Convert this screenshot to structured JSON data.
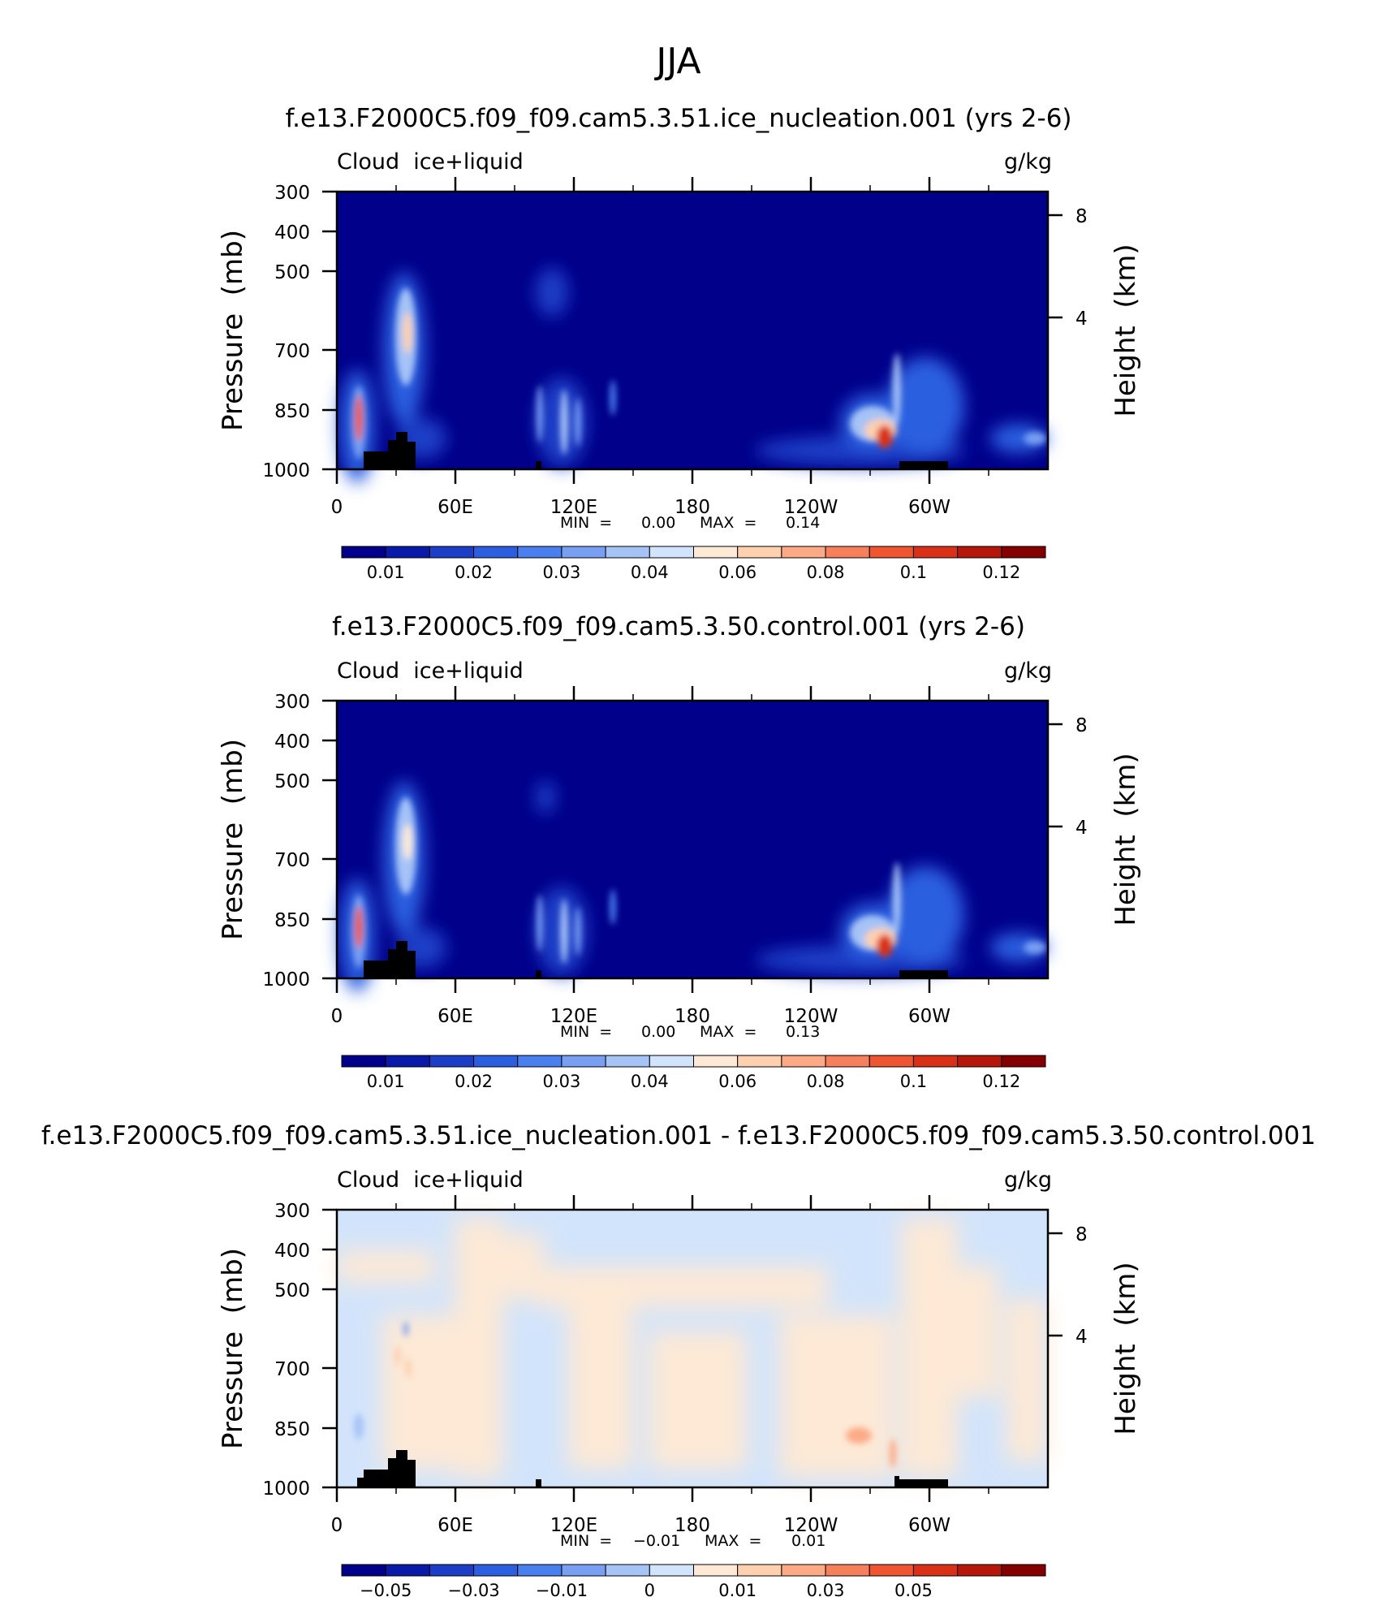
{
  "figure": {
    "title": "JJA"
  },
  "colorbars": {
    "abs": {
      "colors": [
        "#00008a",
        "#0a1aa8",
        "#1c3ec6",
        "#2c5fe0",
        "#4a7ff0",
        "#789ff2",
        "#a6c3f6",
        "#d2e4fb",
        "#fde9d6",
        "#fdd0b0",
        "#fcaa85",
        "#f7805c",
        "#f05532",
        "#d93117",
        "#b5170b",
        "#840000"
      ],
      "labels": [
        "0.01",
        "0.02",
        "0.03",
        "0.04",
        "0.06",
        "0.08",
        "0.1",
        "0.12"
      ]
    },
    "diff": {
      "colors": [
        "#00008a",
        "#0a1aa8",
        "#1c3ec6",
        "#2c5fe0",
        "#4a7ff0",
        "#789ff2",
        "#a6c3f6",
        "#d2e4fb",
        "#fde9d6",
        "#fdd0b0",
        "#fcaa85",
        "#f7805c",
        "#f05532",
        "#d93117",
        "#b5170b",
        "#840000"
      ],
      "labels": [
        "−0.05",
        "−0.03",
        "−0.01",
        "0",
        "0.01",
        "0.03",
        "0.05"
      ]
    }
  },
  "chart_data": [
    {
      "type": "heatmap",
      "title": "f.e13.F2000C5.f09_f09.cam5.3.51.ice_nucleation.001 (yrs 2-6)",
      "left_string": "Cloud  ice+liquid",
      "right_string": "g/kg",
      "ylabel": "Pressure  (mb)",
      "y2label": "Height  (km)",
      "xticks": [
        "0",
        "60E",
        "120E",
        "180",
        "120W",
        "60W"
      ],
      "yticks": [
        "300",
        "400",
        "500",
        "700",
        "850",
        "1000"
      ],
      "y2ticks": [
        "8",
        "4"
      ],
      "min_label": "MIN  =",
      "min_value": "0.00",
      "max_label": "MAX  =",
      "max_value": "0.14",
      "colorbar": "abs",
      "background": "#00008a",
      "features": [
        {
          "lon": 12,
          "p": 860,
          "value": 0.12
        },
        {
          "lon": 34,
          "p": 680,
          "value": 0.08
        },
        {
          "lon": 100,
          "p": 860,
          "value": 0.03
        },
        {
          "lon": 110,
          "p": 860,
          "value": 0.03
        },
        {
          "lon": 255,
          "p": 880,
          "value": 0.1
        },
        {
          "lon": 280,
          "p": 850,
          "value": 0.03
        },
        {
          "lon": 345,
          "p": 900,
          "value": 0.03
        }
      ]
    },
    {
      "type": "heatmap",
      "title": "f.e13.F2000C5.f09_f09.cam5.3.50.control.001 (yrs 2-6)",
      "left_string": "Cloud  ice+liquid",
      "right_string": "g/kg",
      "ylabel": "Pressure  (mb)",
      "y2label": "Height  (km)",
      "xticks": [
        "0",
        "60E",
        "120E",
        "180",
        "120W",
        "60W"
      ],
      "yticks": [
        "300",
        "400",
        "500",
        "700",
        "850",
        "1000"
      ],
      "y2ticks": [
        "8",
        "4"
      ],
      "min_label": "MIN  =",
      "min_value": "0.00",
      "max_label": "MAX  =",
      "max_value": "0.13",
      "colorbar": "abs",
      "background": "#00008a",
      "features": [
        {
          "lon": 12,
          "p": 860,
          "value": 0.11
        },
        {
          "lon": 34,
          "p": 680,
          "value": 0.07
        },
        {
          "lon": 100,
          "p": 860,
          "value": 0.03
        },
        {
          "lon": 110,
          "p": 860,
          "value": 0.03
        },
        {
          "lon": 255,
          "p": 880,
          "value": 0.1
        },
        {
          "lon": 280,
          "p": 850,
          "value": 0.03
        },
        {
          "lon": 345,
          "p": 900,
          "value": 0.03
        }
      ]
    },
    {
      "type": "heatmap",
      "title": "f.e13.F2000C5.f09_f09.cam5.3.51.ice_nucleation.001 - f.e13.F2000C5.f09_f09.cam5.3.50.control.001",
      "left_string": "Cloud  ice+liquid",
      "right_string": "g/kg",
      "ylabel": "Pressure  (mb)",
      "y2label": "Height  (km)",
      "xticks": [
        "0",
        "60E",
        "120E",
        "180",
        "120W",
        "60W"
      ],
      "yticks": [
        "300",
        "400",
        "500",
        "700",
        "850",
        "1000"
      ],
      "y2ticks": [
        "8",
        "4"
      ],
      "min_label": "MIN  =",
      "min_value": "−0.01",
      "max_label": "MAX  =",
      "max_value": "0.01",
      "colorbar": "diff",
      "background": "#d2e4fb",
      "features": [
        {
          "lon": 27,
          "p": 680,
          "value": 0.01
        },
        {
          "lon": 10,
          "p": 860,
          "value": -0.01
        },
        {
          "lon": 255,
          "p": 880,
          "value": 0.01
        }
      ]
    }
  ]
}
